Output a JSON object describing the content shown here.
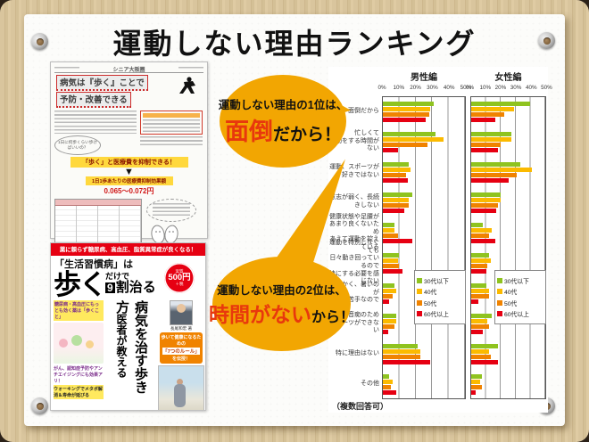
{
  "slide": {
    "title": "運動しない理由ランキング"
  },
  "bubbles": [
    {
      "prefix": "運動しない理由の1位は、",
      "highlight": "面倒",
      "suffix": "だから！"
    },
    {
      "prefix": "運動しない理由の2位は、",
      "highlight": "時間がない",
      "suffix": "から！"
    }
  ],
  "flyer": {
    "masthead": "シニア大阪圏",
    "title_line1": "病気は『歩く』ことで",
    "title_line2": "予防・改善できる",
    "question_bubble": "1日に何歩くらい歩けばいいの？",
    "highlight1": "「歩く」と医療費を抑制できる！",
    "highlight2": "1日1歩あたりの医療費抑制効果額",
    "amount": "0.065～0.072円"
  },
  "book": {
    "banner": "薬に頼らず糖尿病、高血圧、脂質異常症が良くなる！",
    "series": "「生活習慣病」は",
    "title_big": "歩く",
    "title_mid": "だけで",
    "title_num": "9",
    "title_rest": "割治る",
    "price_top": "実質",
    "price_main": "500円",
    "price_tax": "＋税",
    "left_box": "糖尿病・高血圧にもっとも効く薬は「歩くこと」",
    "vertical_sub": "医者が教える",
    "vertical_main": "病気を治す歩き方",
    "author": "長尾和宏 著",
    "left_text1": "がん、認知症予防やアンチエイジングにも効果アリ！",
    "left_text2": "ウォーキングでメタボ解消＆寿命が延びる",
    "orange_pre": "歩いて健康になるための",
    "orange_mid": "「7つのルール」",
    "orange_suf": "を伝授！"
  },
  "chart_data": {
    "type": "bar",
    "orientation": "horizontal",
    "panels": [
      "男性編",
      "女性編"
    ],
    "x_ticks": [
      "0%",
      "10%",
      "20%",
      "30%",
      "40%",
      "50%"
    ],
    "xlim": [
      0,
      50
    ],
    "note": "（複数回答可）",
    "legend": [
      {
        "label": "30代以下",
        "color": "#8fc31f"
      },
      {
        "label": "40代",
        "color": "#fbba00"
      },
      {
        "label": "50代",
        "color": "#f08300"
      },
      {
        "label": "60代以上",
        "color": "#e60012"
      }
    ],
    "categories": [
      {
        "label": "面倒だから",
        "male": [
          31,
          29,
          28,
          26
        ],
        "female": [
          40,
          29,
          22,
          16
        ]
      },
      {
        "label": "忙しくて\n運動をする時間がない",
        "male": [
          32,
          37,
          27,
          9
        ],
        "female": [
          27,
          27,
          20,
          18
        ]
      },
      {
        "label": "運動、スポーツが\n好きではない",
        "male": [
          16,
          17,
          14,
          15
        ],
        "female": [
          33,
          41,
          31,
          25
        ]
      },
      {
        "label": "意志が弱く、長続きしない",
        "male": [
          18,
          16,
          16,
          13
        ],
        "female": [
          20,
          20,
          18,
          17
        ]
      },
      {
        "label": "健康状態や足腰が\nあまり良くないため\nあえて運動を控えている",
        "male": [
          7,
          7,
          9,
          18
        ],
        "female": [
          8,
          14,
          12,
          16
        ]
      },
      {
        "label": "運動を特別しなくても\n日々動き回っているので\n特にする必要を感じない",
        "male": [
          10,
          9,
          10,
          12
        ],
        "female": [
          12,
          13,
          11,
          10
        ]
      },
      {
        "label": "汗をかく、暑いのが\n苦手なので",
        "male": [
          7,
          8,
          6,
          4
        ],
        "female": [
          10,
          12,
          12,
          5
        ]
      },
      {
        "label": "運動音痴のため\nスポーツができない",
        "male": [
          8,
          8,
          7,
          3
        ],
        "female": [
          14,
          11,
          12,
          8
        ]
      },
      {
        "label": "特に理由はない",
        "male": [
          21,
          23,
          23,
          29
        ],
        "female": [
          18,
          12,
          13,
          18
        ]
      },
      {
        "label": "その他",
        "male": [
          4,
          6,
          5,
          8
        ],
        "female": [
          7,
          6,
          7,
          3
        ]
      }
    ]
  }
}
